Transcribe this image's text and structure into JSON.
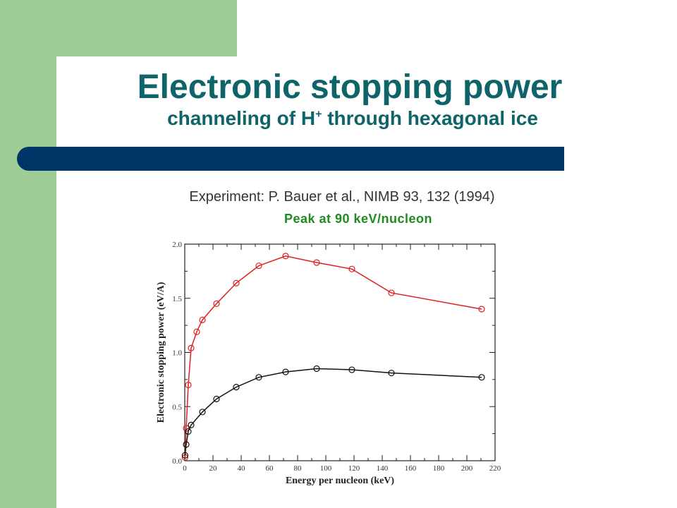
{
  "slide": {
    "title": "Electronic stopping power",
    "subtitle_main": "channeling of H",
    "subtitle_sup": "+",
    "subtitle_rest": " through hexagonal ice",
    "experiment": "Experiment: P. Bauer et al., NIMB 93, 132 (1994)",
    "peak": "Peak at 90 keV/nucleon"
  },
  "chart_data": {
    "type": "line",
    "xlabel": "Energy per nucleon (keV)",
    "ylabel": "Electronic stopping power (eV/A)",
    "xlim": [
      0,
      220
    ],
    "ylim": [
      0,
      2.0
    ],
    "xticks": [
      0,
      20,
      40,
      60,
      80,
      100,
      120,
      140,
      160,
      180,
      200,
      220
    ],
    "yticks": [
      0.0,
      0.5,
      1.0,
      1.5,
      2.0
    ],
    "ytick_labels": [
      "0.0",
      "0.5",
      "1.0",
      "1.5",
      "2.0"
    ],
    "series": [
      {
        "color": "#e02020",
        "marker": "open-circle",
        "x": [
          0.2,
          1.0,
          2.5,
          4.5,
          8.5,
          12.5,
          22.5,
          36.5,
          52.5,
          71.5,
          93.5,
          118.5,
          146.5,
          210.5
        ],
        "y": [
          0.03,
          0.3,
          0.7,
          1.04,
          1.19,
          1.3,
          1.45,
          1.64,
          1.8,
          1.89,
          1.83,
          1.77,
          1.55,
          1.4
        ]
      },
      {
        "color": "#111111",
        "marker": "open-circle",
        "x": [
          0.2,
          1.0,
          2.5,
          4.5,
          12.5,
          22.5,
          36.5,
          52.5,
          71.5,
          93.5,
          118.5,
          146.5,
          210.5
        ],
        "y": [
          0.05,
          0.15,
          0.27,
          0.33,
          0.45,
          0.57,
          0.68,
          0.77,
          0.82,
          0.85,
          0.84,
          0.81,
          0.77
        ]
      }
    ]
  }
}
